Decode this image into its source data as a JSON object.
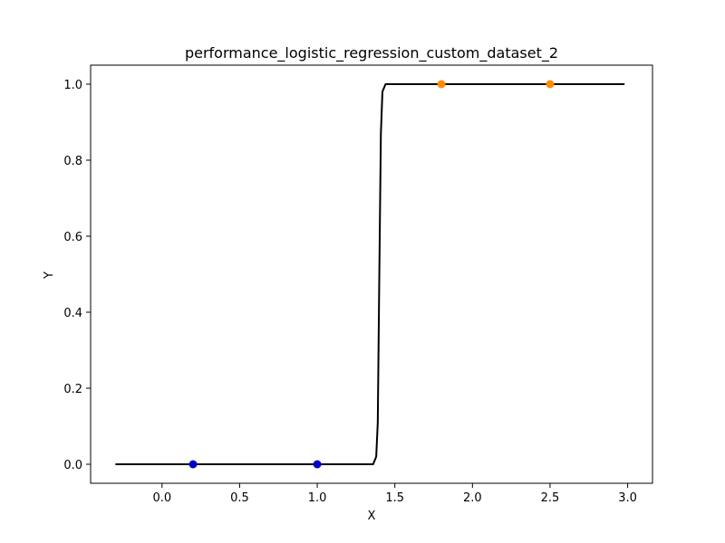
{
  "chart_data": {
    "type": "scatter",
    "title": "performance_logistic_regression_custom_dataset_2",
    "xlabel": "X",
    "ylabel": "Y",
    "xlim": [
      -0.46,
      3.16
    ],
    "ylim": [
      -0.05,
      1.05
    ],
    "x_ticks": [
      "0.0",
      "0.5",
      "1.0",
      "1.5",
      "2.0",
      "2.5",
      "3.0"
    ],
    "y_ticks": [
      "0.0",
      "0.2",
      "0.4",
      "0.6",
      "0.8",
      "1.0"
    ],
    "grid": false,
    "series": [
      {
        "kind": "scatter",
        "color": "#0000cc",
        "points": [
          {
            "x": 0.2,
            "y": 0.0
          },
          {
            "x": 1.0,
            "y": 0.0
          }
        ]
      },
      {
        "kind": "scatter",
        "color": "#ff8c00",
        "points": [
          {
            "x": 1.8,
            "y": 1.0
          },
          {
            "x": 2.5,
            "y": 1.0
          }
        ]
      },
      {
        "kind": "line",
        "color": "#000000",
        "points": [
          {
            "x": -0.3,
            "y": 0.0
          },
          {
            "x": 1.36,
            "y": 0.0
          },
          {
            "x": 1.38,
            "y": 0.02
          },
          {
            "x": 1.39,
            "y": 0.11
          },
          {
            "x": 1.4,
            "y": 0.5
          },
          {
            "x": 1.41,
            "y": 0.87
          },
          {
            "x": 1.42,
            "y": 0.98
          },
          {
            "x": 1.44,
            "y": 1.0
          },
          {
            "x": 2.98,
            "y": 1.0
          }
        ]
      }
    ]
  }
}
